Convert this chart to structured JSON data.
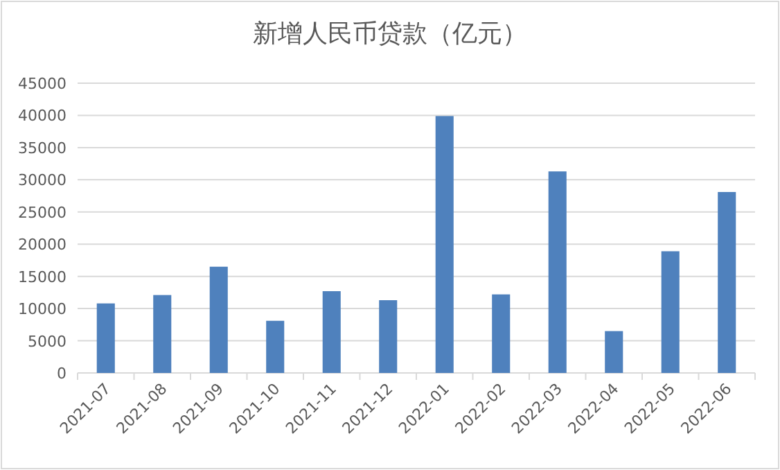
{
  "chart_data": {
    "type": "bar",
    "title": "新增人民币贷款（亿元）",
    "categories": [
      "2021-07",
      "2021-08",
      "2021-09",
      "2021-10",
      "2021-11",
      "2021-12",
      "2022-01",
      "2022-02",
      "2022-03",
      "2022-04",
      "2022-05",
      "2022-06"
    ],
    "values": [
      10800,
      12100,
      16500,
      8100,
      12700,
      11300,
      39900,
      12200,
      31300,
      6500,
      18900,
      28100
    ],
    "color": "#4f81bd",
    "ylim": [
      0,
      45000
    ],
    "yticks": [
      0,
      5000,
      10000,
      15000,
      20000,
      25000,
      30000,
      35000,
      40000,
      45000
    ],
    "grid": "y"
  }
}
